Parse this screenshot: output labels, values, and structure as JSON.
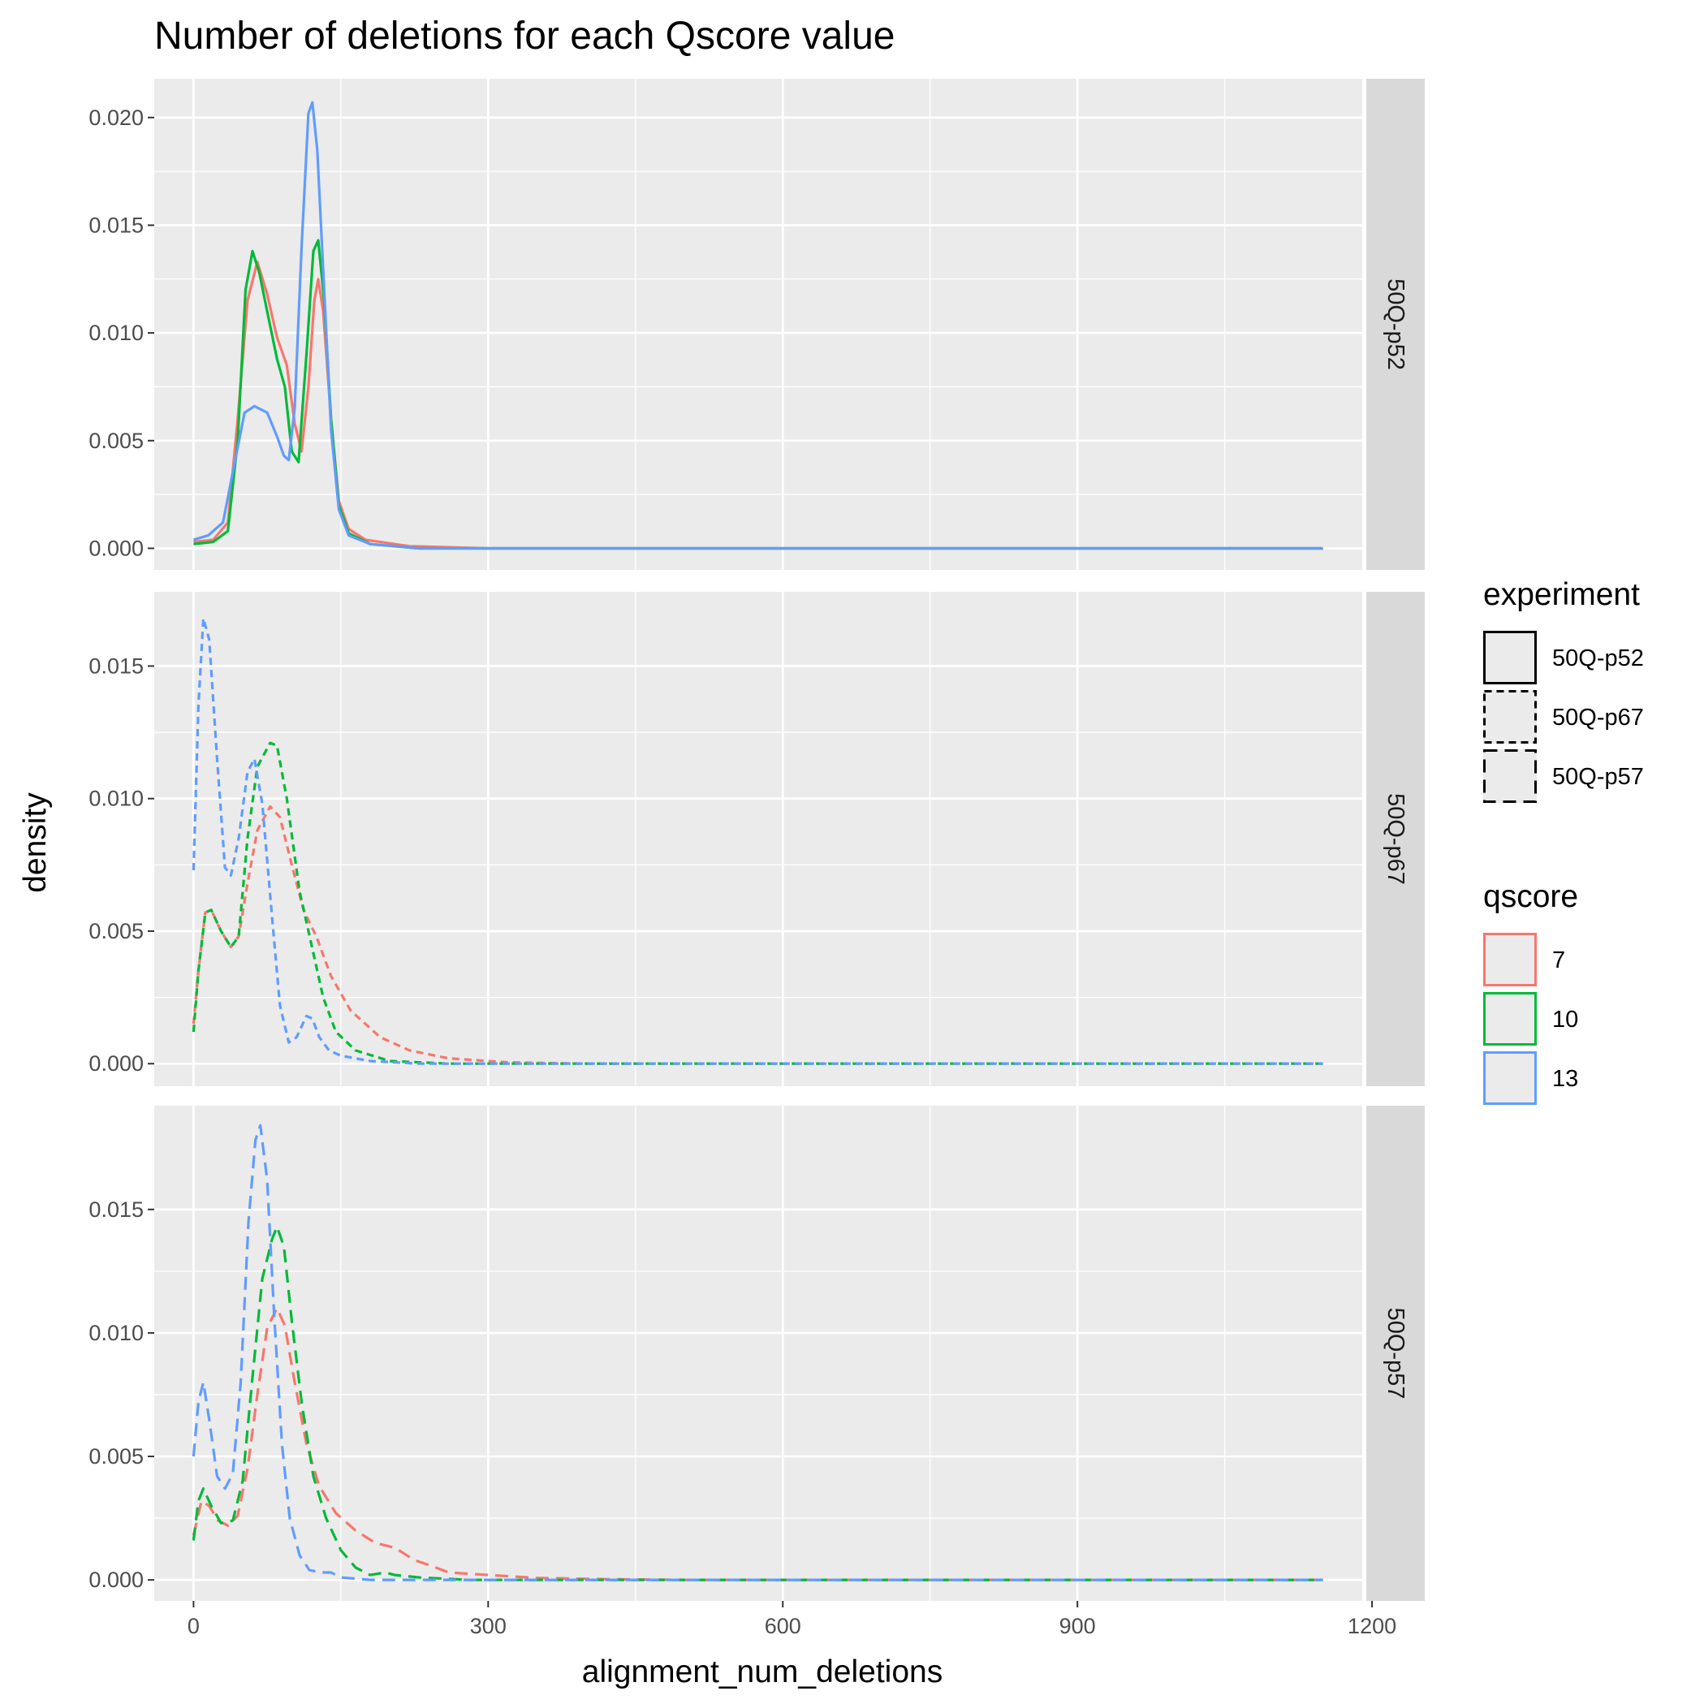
{
  "chart_data": {
    "type": "line",
    "title": "Number of deletions for each Qscore value",
    "xlabel": "alignment_num_deletions",
    "ylabel": "density",
    "xlim": [
      -40,
      1190
    ],
    "x_ticks": [
      0,
      300,
      600,
      900,
      1200
    ],
    "x_tick_labels": [
      "0",
      "300",
      "600",
      "900",
      "1200"
    ],
    "grid": true,
    "legend_position": "right",
    "legends": {
      "experiment": {
        "title": "experiment",
        "entries": [
          {
            "label": "50Q-p52",
            "linetype": "solid"
          },
          {
            "label": "50Q-p67",
            "linetype": "dotted"
          },
          {
            "label": "50Q-p57",
            "linetype": "dashed"
          }
        ]
      },
      "qscore": {
        "title": "qscore",
        "entries": [
          {
            "label": "7",
            "color": "#F8766D"
          },
          {
            "label": "10",
            "color": "#00BA38"
          },
          {
            "label": "13",
            "color": "#619CFF"
          }
        ]
      }
    },
    "facets": [
      {
        "strip": "50Q-p52",
        "linetype": "solid",
        "ylim": [
          -0.001,
          0.0218
        ],
        "y_ticks": [
          0,
          0.005,
          0.01,
          0.015,
          0.02
        ],
        "y_tick_labels": [
          "0.000",
          "0.005",
          "0.010",
          "0.015",
          "0.020"
        ],
        "series": [
          {
            "qscore": "7",
            "color": "#F8766D",
            "points": [
              [
                0,
                0.0003
              ],
              [
                20,
                0.0004
              ],
              [
                35,
                0.0012
              ],
              [
                45,
                0.006
              ],
              [
                55,
                0.0115
              ],
              [
                65,
                0.0133
              ],
              [
                75,
                0.0118
              ],
              [
                85,
                0.0098
              ],
              [
                95,
                0.0085
              ],
              [
                103,
                0.0058
              ],
              [
                110,
                0.0045
              ],
              [
                117,
                0.0075
              ],
              [
                123,
                0.0115
              ],
              [
                127,
                0.0125
              ],
              [
                132,
                0.011
              ],
              [
                140,
                0.006
              ],
              [
                148,
                0.0022
              ],
              [
                158,
                0.0009
              ],
              [
                175,
                0.0004
              ],
              [
                220,
                0.0001
              ],
              [
                300,
                0
              ],
              [
                1150,
                0
              ]
            ]
          },
          {
            "qscore": "10",
            "color": "#00BA38",
            "points": [
              [
                0,
                0.0002
              ],
              [
                20,
                0.0003
              ],
              [
                35,
                0.0008
              ],
              [
                45,
                0.005
              ],
              [
                53,
                0.012
              ],
              [
                60,
                0.0138
              ],
              [
                67,
                0.0128
              ],
              [
                75,
                0.011
              ],
              [
                85,
                0.0088
              ],
              [
                93,
                0.0075
              ],
              [
                100,
                0.0045
              ],
              [
                107,
                0.004
              ],
              [
                115,
                0.009
              ],
              [
                122,
                0.0138
              ],
              [
                127,
                0.0143
              ],
              [
                133,
                0.0115
              ],
              [
                140,
                0.006
              ],
              [
                148,
                0.002
              ],
              [
                158,
                0.0007
              ],
              [
                180,
                0.0002
              ],
              [
                230,
                0
              ],
              [
                1150,
                0
              ]
            ]
          },
          {
            "qscore": "13",
            "color": "#619CFF",
            "points": [
              [
                0,
                0.0004
              ],
              [
                15,
                0.0006
              ],
              [
                30,
                0.0012
              ],
              [
                42,
                0.004
              ],
              [
                52,
                0.0063
              ],
              [
                62,
                0.0066
              ],
              [
                75,
                0.0063
              ],
              [
                85,
                0.0052
              ],
              [
                92,
                0.0043
              ],
              [
                97,
                0.0041
              ],
              [
                103,
                0.0065
              ],
              [
                110,
                0.014
              ],
              [
                117,
                0.0202
              ],
              [
                121,
                0.0207
              ],
              [
                126,
                0.0185
              ],
              [
                133,
                0.012
              ],
              [
                140,
                0.0055
              ],
              [
                148,
                0.0018
              ],
              [
                158,
                0.0006
              ],
              [
                180,
                0.0002
              ],
              [
                230,
                0
              ],
              [
                1150,
                0
              ]
            ]
          }
        ]
      },
      {
        "strip": "50Q-p67",
        "linetype": "dotted",
        "ylim": [
          -0.00085,
          0.0178
        ],
        "y_ticks": [
          0,
          0.005,
          0.01,
          0.015
        ],
        "y_tick_labels": [
          "0.000",
          "0.005",
          "0.010",
          "0.015"
        ],
        "series": [
          {
            "qscore": "7",
            "color": "#F8766D",
            "points": [
              [
                0,
                0.0015
              ],
              [
                5,
                0.0035
              ],
              [
                12,
                0.0057
              ],
              [
                18,
                0.0058
              ],
              [
                28,
                0.005
              ],
              [
                38,
                0.0044
              ],
              [
                46,
                0.0048
              ],
              [
                55,
                0.0068
              ],
              [
                65,
                0.0088
              ],
              [
                78,
                0.0097
              ],
              [
                88,
                0.0093
              ],
              [
                100,
                0.0075
              ],
              [
                112,
                0.0058
              ],
              [
                125,
                0.0048
              ],
              [
                140,
                0.0033
              ],
              [
                160,
                0.002
              ],
              [
                190,
                0.001
              ],
              [
                220,
                0.0005
              ],
              [
                260,
                0.0002
              ],
              [
                320,
                5e-05
              ],
              [
                400,
                0
              ],
              [
                1150,
                0
              ]
            ]
          },
          {
            "qscore": "10",
            "color": "#00BA38",
            "points": [
              [
                0,
                0.0012
              ],
              [
                5,
                0.0035
              ],
              [
                12,
                0.0057
              ],
              [
                18,
                0.0058
              ],
              [
                28,
                0.005
              ],
              [
                38,
                0.0044
              ],
              [
                46,
                0.0048
              ],
              [
                55,
                0.0085
              ],
              [
                65,
                0.0112
              ],
              [
                78,
                0.0121
              ],
              [
                85,
                0.012
              ],
              [
                95,
                0.01
              ],
              [
                108,
                0.0065
              ],
              [
                120,
                0.0045
              ],
              [
                132,
                0.0025
              ],
              [
                145,
                0.0012
              ],
              [
                165,
                0.0005
              ],
              [
                200,
                0.0001
              ],
              [
                260,
                0
              ],
              [
                1150,
                0
              ]
            ]
          },
          {
            "qscore": "13",
            "color": "#619CFF",
            "points": [
              [
                0,
                0.0073
              ],
              [
                5,
                0.0135
              ],
              [
                10,
                0.0168
              ],
              [
                16,
                0.016
              ],
              [
                24,
                0.0115
              ],
              [
                32,
                0.0074
              ],
              [
                38,
                0.0071
              ],
              [
                46,
                0.0085
              ],
              [
                55,
                0.011
              ],
              [
                62,
                0.0115
              ],
              [
                70,
                0.0098
              ],
              [
                80,
                0.0055
              ],
              [
                88,
                0.0022
              ],
              [
                97,
                0.0008
              ],
              [
                105,
                0.001
              ],
              [
                115,
                0.0018
              ],
              [
                121,
                0.0017
              ],
              [
                128,
                0.001
              ],
              [
                138,
                0.0005
              ],
              [
                150,
                0.0003
              ],
              [
                180,
                0.0001
              ],
              [
                230,
                0
              ],
              [
                1150,
                0
              ]
            ]
          }
        ]
      },
      {
        "strip": "50Q-p57",
        "linetype": "dashed",
        "ylim": [
          -0.00085,
          0.0192
        ],
        "y_ticks": [
          0,
          0.005,
          0.01,
          0.015
        ],
        "y_tick_labels": [
          "0.000",
          "0.005",
          "0.010",
          "0.015"
        ],
        "series": [
          {
            "qscore": "7",
            "color": "#F8766D",
            "points": [
              [
                0,
                0.0018
              ],
              [
                8,
                0.0032
              ],
              [
                16,
                0.003
              ],
              [
                25,
                0.0024
              ],
              [
                35,
                0.0022
              ],
              [
                45,
                0.0026
              ],
              [
                55,
                0.0045
              ],
              [
                65,
                0.0075
              ],
              [
                75,
                0.0102
              ],
              [
                85,
                0.011
              ],
              [
                93,
                0.0103
              ],
              [
                103,
                0.008
              ],
              [
                115,
                0.0055
              ],
              [
                128,
                0.0038
              ],
              [
                145,
                0.0027
              ],
              [
                165,
                0.002
              ],
              [
                185,
                0.0015
              ],
              [
                205,
                0.0013
              ],
              [
                225,
                0.0008
              ],
              [
                240,
                0.0006
              ],
              [
                260,
                0.0003
              ],
              [
                300,
                0.0002
              ],
              [
                350,
                8e-05
              ],
              [
                420,
                3e-05
              ],
              [
                500,
                0
              ],
              [
                1150,
                0
              ]
            ]
          },
          {
            "qscore": "10",
            "color": "#00BA38",
            "points": [
              [
                0,
                0.0016
              ],
              [
                5,
                0.0032
              ],
              [
                10,
                0.0037
              ],
              [
                18,
                0.003
              ],
              [
                28,
                0.0023
              ],
              [
                40,
                0.0024
              ],
              [
                50,
                0.004
              ],
              [
                60,
                0.0082
              ],
              [
                70,
                0.0122
              ],
              [
                80,
                0.0138
              ],
              [
                85,
                0.0143
              ],
              [
                92,
                0.0135
              ],
              [
                100,
                0.0105
              ],
              [
                110,
                0.0072
              ],
              [
                122,
                0.0042
              ],
              [
                135,
                0.0025
              ],
              [
                150,
                0.0012
              ],
              [
                165,
                0.0005
              ],
              [
                180,
                0.0002
              ],
              [
                195,
                0.0003
              ],
              [
                205,
                0.0002
              ],
              [
                230,
                0.0001
              ],
              [
                280,
                0
              ],
              [
                1150,
                0
              ]
            ]
          },
          {
            "qscore": "13",
            "color": "#619CFF",
            "points": [
              [
                0,
                0.005
              ],
              [
                5,
                0.0072
              ],
              [
                10,
                0.008
              ],
              [
                16,
                0.0065
              ],
              [
                24,
                0.0042
              ],
              [
                32,
                0.0037
              ],
              [
                40,
                0.0043
              ],
              [
                48,
                0.008
              ],
              [
                56,
                0.0145
              ],
              [
                63,
                0.0178
              ],
              [
                68,
                0.0184
              ],
              [
                75,
                0.0162
              ],
              [
                82,
                0.0108
              ],
              [
                90,
                0.0055
              ],
              [
                98,
                0.0025
              ],
              [
                108,
                0.001
              ],
              [
                118,
                0.0004
              ],
              [
                130,
                0.0003
              ],
              [
                140,
                0.0003
              ],
              [
                150,
                0.0001
              ],
              [
                180,
                0
              ],
              [
                1150,
                0
              ]
            ]
          }
        ]
      }
    ]
  }
}
